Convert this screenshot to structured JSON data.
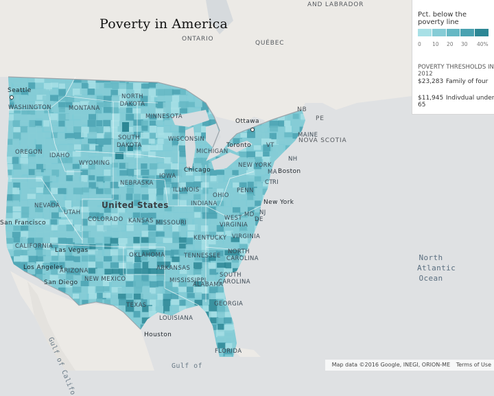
{
  "title": "Poverty in America",
  "legend": {
    "title": "Pct. below the poverty line",
    "colors": [
      "#a8e0e6",
      "#86ccd6",
      "#66b8c4",
      "#4aa2b1",
      "#2d8795"
    ],
    "ticks": [
      "0",
      "10",
      "20",
      "30",
      "40%"
    ],
    "subtitle": "POVERTY THRESHOLDS IN 2012",
    "thresholds": [
      {
        "amount": "$23,283",
        "label": "Family of four"
      },
      {
        "amount": "$11,945",
        "label": "Indivdual under 65"
      }
    ]
  },
  "labels": {
    "countries": [
      "United States"
    ],
    "provinces": [
      "ONTARIO",
      "QUÉBEC",
      "AND LABRADOR",
      "NB",
      "PE",
      "NOVA SCOTIA"
    ],
    "states": [
      "WASHINGTON",
      "MONTANA",
      "NORTH DAKOTA",
      "MINNESOTA",
      "OREGON",
      "IDAHO",
      "WYOMING",
      "SOUTH DAKOTA",
      "WISCONSIN",
      "MICHIGAN",
      "NEBRASKA",
      "IOWA",
      "ILLINOIS",
      "INDIANA",
      "OHIO",
      "PENN",
      "NEVADA",
      "UTAH",
      "COLORADO",
      "KANSAS",
      "MISSOURI",
      "KENTUCKY",
      "WEST VIRGINIA",
      "VIRGINIA",
      "CALIFORNIA",
      "ARIZONA",
      "NEW MEXICO",
      "OKLAHOMA",
      "ARKANSAS",
      "TENNESSEE",
      "NORTH CAROLINA",
      "SOUTH CAROLINA",
      "MISSISSIPPI",
      "ALABAMA",
      "GEORGIA",
      "TEXAS",
      "LOUISIANA",
      "FLORIDA",
      "NEW YORK",
      "VT",
      "NH",
      "MAINE",
      "MA",
      "CT",
      "RI",
      "NJ",
      "DE",
      "MD"
    ],
    "cities": [
      "Seattle",
      "Ottawa",
      "Toronto",
      "Chicago",
      "Boston",
      "New York",
      "San Francisco",
      "Las Vegas",
      "Los Angeles",
      "San Diego",
      "Houston"
    ],
    "water": [
      "North",
      "Atlantic",
      "Ocean",
      "Gulf of Califo",
      "Gulf of"
    ]
  },
  "attribution": {
    "text": "Map data ©2016 Google, INEGI, ORION-ME",
    "terms": "Terms of Use"
  }
}
